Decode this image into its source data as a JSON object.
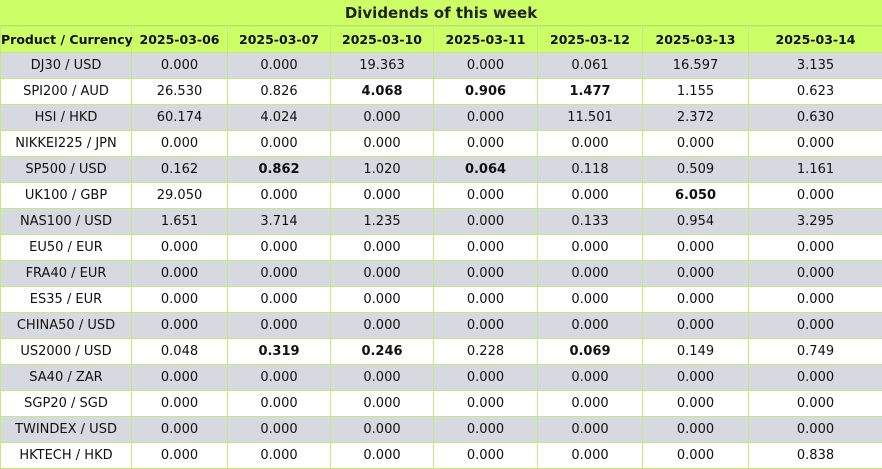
{
  "title": "Dividends of this week",
  "table": {
    "header": [
      "Product / Currency",
      "2025-03-06",
      "2025-03-07",
      "2025-03-10",
      "2025-03-11",
      "2025-03-12",
      "2025-03-13",
      "2025-03-14"
    ],
    "rows": [
      [
        "DJ30 / USD",
        "0.000",
        "0.000",
        "19.363",
        "0.000",
        "0.061",
        "16.597",
        "3.135"
      ],
      [
        "SPI200 / AUD",
        "26.530",
        "0.826",
        "4.068",
        "0.906",
        "1.477",
        "1.155",
        "0.623"
      ],
      [
        "HSI / HKD",
        "60.174",
        "4.024",
        "0.000",
        "0.000",
        "11.501",
        "2.372",
        "0.630"
      ],
      [
        "NIKKEI225 / JPN",
        "0.000",
        "0.000",
        "0.000",
        "0.000",
        "0.000",
        "0.000",
        "0.000"
      ],
      [
        "SP500 / USD",
        "0.162",
        "0.862",
        "1.020",
        "0.064",
        "0.118",
        "0.509",
        "1.161"
      ],
      [
        "UK100 / GBP",
        "29.050",
        "0.000",
        "0.000",
        "0.000",
        "0.000",
        "6.050",
        "0.000"
      ],
      [
        "NAS100 / USD",
        "1.651",
        "3.714",
        "1.235",
        "0.000",
        "0.133",
        "0.954",
        "3.295"
      ],
      [
        "EU50 / EUR",
        "0.000",
        "0.000",
        "0.000",
        "0.000",
        "0.000",
        "0.000",
        "0.000"
      ],
      [
        "FRA40 / EUR",
        "0.000",
        "0.000",
        "0.000",
        "0.000",
        "0.000",
        "0.000",
        "0.000"
      ],
      [
        "ES35 / EUR",
        "0.000",
        "0.000",
        "0.000",
        "0.000",
        "0.000",
        "0.000",
        "0.000"
      ],
      [
        "CHINA50 / USD",
        "0.000",
        "0.000",
        "0.000",
        "0.000",
        "0.000",
        "0.000",
        "0.000"
      ],
      [
        "US2000 / USD",
        "0.048",
        "0.319",
        "0.246",
        "0.228",
        "0.069",
        "0.149",
        "0.749"
      ],
      [
        "SA40 / ZAR",
        "0.000",
        "0.000",
        "0.000",
        "0.000",
        "0.000",
        "0.000",
        "0.000"
      ],
      [
        "SGP20 / SGD",
        "0.000",
        "0.000",
        "0.000",
        "0.000",
        "0.000",
        "0.000",
        "0.000"
      ],
      [
        "TWINDEX / USD",
        "0.000",
        "0.000",
        "0.000",
        "0.000",
        "0.000",
        "0.000",
        "0.000"
      ],
      [
        "HKTECH / HKD",
        "0.000",
        "0.000",
        "0.000",
        "0.000",
        "0.000",
        "0.000",
        "0.838"
      ]
    ],
    "bold_cells": [
      [
        1,
        3
      ],
      [
        1,
        4
      ],
      [
        1,
        5
      ],
      [
        4,
        2
      ],
      [
        4,
        4
      ],
      [
        5,
        6
      ],
      [
        11,
        2
      ],
      [
        11,
        3
      ],
      [
        11,
        5
      ]
    ]
  }
}
